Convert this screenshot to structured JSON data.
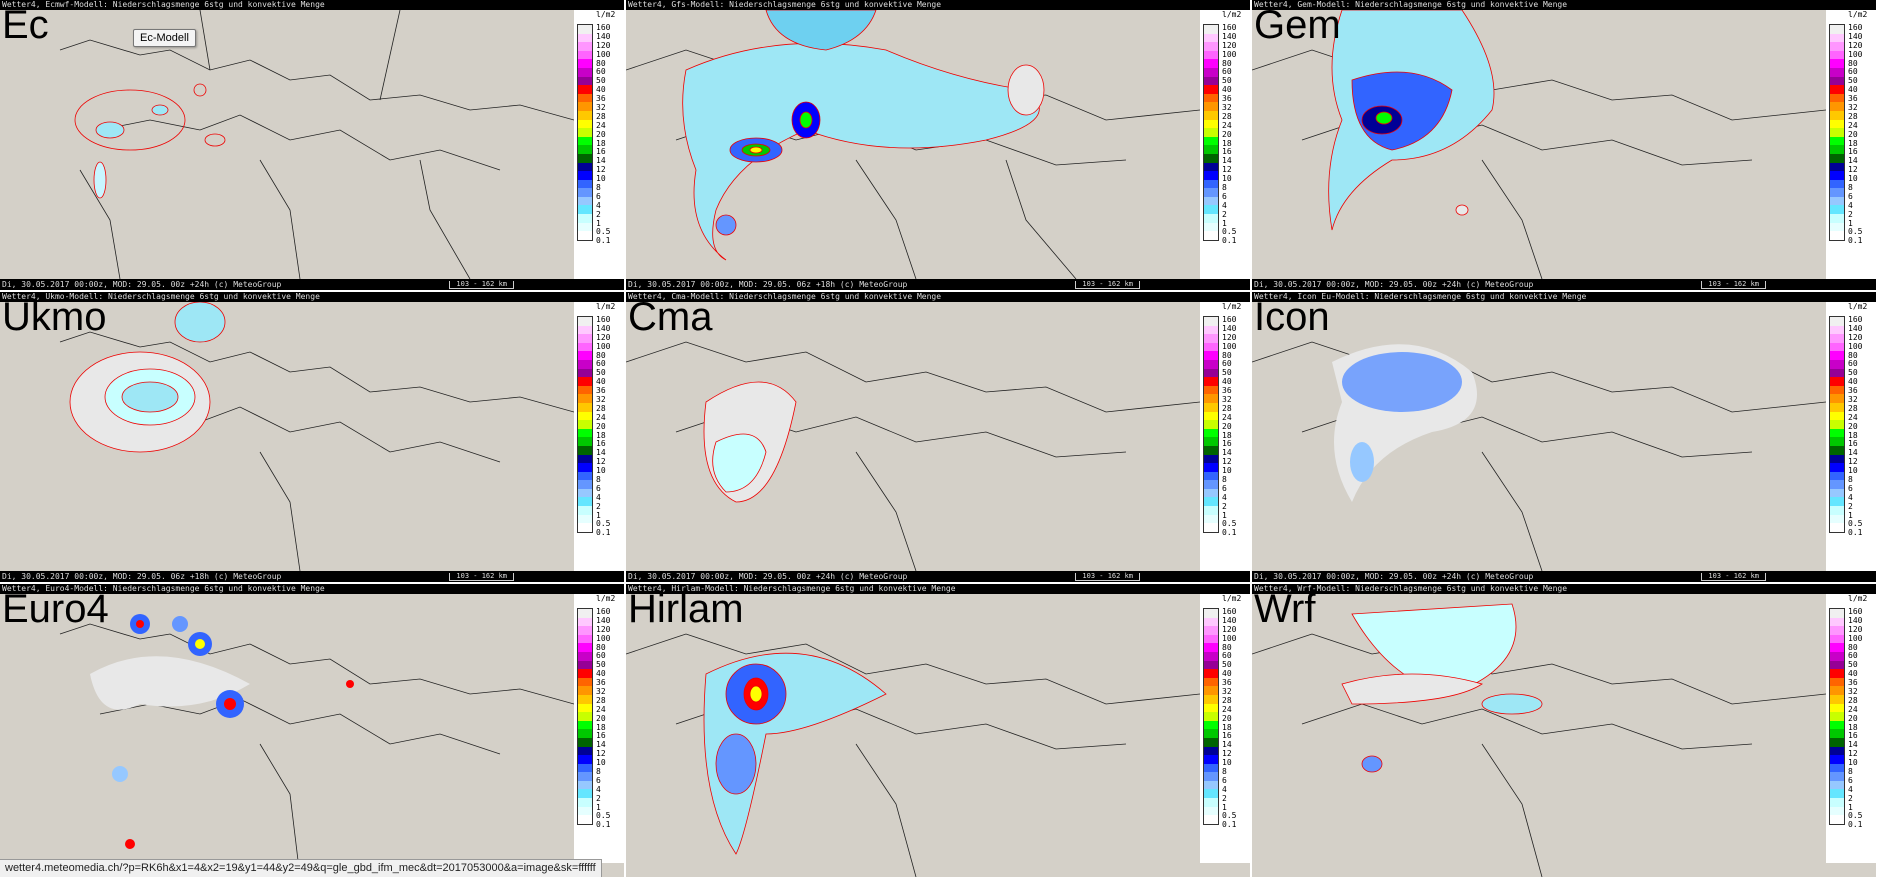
{
  "colors": {
    "background": "#d4d0c8",
    "bar_background": "#000000",
    "isoline": "#e00000"
  },
  "legend": {
    "unit": "l/m2",
    "values": [
      "160",
      "140",
      "120",
      "100",
      "80",
      "60",
      "50",
      "40",
      "36",
      "32",
      "28",
      "24",
      "20",
      "18",
      "16",
      "14",
      "12",
      "10",
      "8",
      "6",
      "4",
      "2",
      "1",
      "0.5",
      "0.1"
    ],
    "colors": [
      "#f0f0f0",
      "#ffc8ff",
      "#ff96ff",
      "#ff64ff",
      "#ff00ff",
      "#c800c8",
      "#960096",
      "#ff0000",
      "#ff6400",
      "#ff9600",
      "#ffc800",
      "#ffff00",
      "#c8ff00",
      "#00ff00",
      "#00c800",
      "#006400",
      "#000096",
      "#0000ff",
      "#3264ff",
      "#6496ff",
      "#96c8ff",
      "#64e6ff",
      "#c8ffff",
      "#e6ffff",
      "#ffffff"
    ]
  },
  "panels": [
    {
      "title": "Ec",
      "header": "Wetter4, Ecmwf-Modell: Niederschlagsmenge 6stg und konvektive Menge",
      "footer": "Di, 30.05.2017 00:00z, MOD: 29.05. 00z +24h (c) MeteoGroup",
      "scale": "103 - 162 km"
    },
    {
      "title": "",
      "header": "Wetter4, Gfs-Modell: Niederschlagsmenge 6stg und konvektive Menge",
      "footer": "Di, 30.05.2017 00:00z, MOD: 29.05. 06z +18h (c) MeteoGroup",
      "scale": "103 - 162 km"
    },
    {
      "title": "Gem",
      "header": "Wetter4, Gem-Modell: Niederschlagsmenge 6stg und konvektive Menge",
      "footer": "Di, 30.05.2017 00:00z, MOD: 29.05. 00z +24h (c) MeteoGroup",
      "scale": "103 - 162 km"
    },
    {
      "title": "Ukmo",
      "header": "Wetter4, Ukmo-Modell: Niederschlagsmenge 6stg und konvektive Menge",
      "footer": "Di, 30.05.2017 00:00z, MOD: 29.05. 06z +18h (c) MeteoGroup",
      "scale": "103 - 162 km"
    },
    {
      "title": "Cma",
      "header": "Wetter4, Cma-Modell: Niederschlagsmenge 6stg und konvektive Menge",
      "footer": "Di, 30.05.2017 00:00z, MOD: 29.05. 00z +24h (c) MeteoGroup",
      "scale": "103 - 162 km"
    },
    {
      "title": "Icon",
      "header": "Wetter4, Icon Eu-Modell: Niederschlagsmenge 6stg und konvektive Menge",
      "footer": "Di, 30.05.2017 00:00z, MOD: 29.05. 00z +24h (c) MeteoGroup",
      "scale": "103 - 162 km"
    },
    {
      "title": "Euro4",
      "header": "Wetter4, Euro4-Modell: Niederschlagsmenge 6stg und konvektive Menge",
      "footer": "",
      "scale": ""
    },
    {
      "title": "Hirlam",
      "header": "Wetter4, Hirlam-Modell: Niederschlagsmenge 6stg und konvektive Menge",
      "footer": "",
      "scale": ""
    },
    {
      "title": "Wrf",
      "header": "Wetter4, Wrf-Modell: Niederschlagsmenge 6stg und konvektive Menge",
      "footer": "",
      "scale": ""
    }
  ],
  "tooltip": {
    "label": "Ec-Modell"
  },
  "status_url": "wetter4.meteomedia.ch/?p=RK6h&x1=4&x2=19&y1=44&y2=49&q=gle_gbd_ifm_mec&dt=2017053000&a=image&sk=ffffff"
}
